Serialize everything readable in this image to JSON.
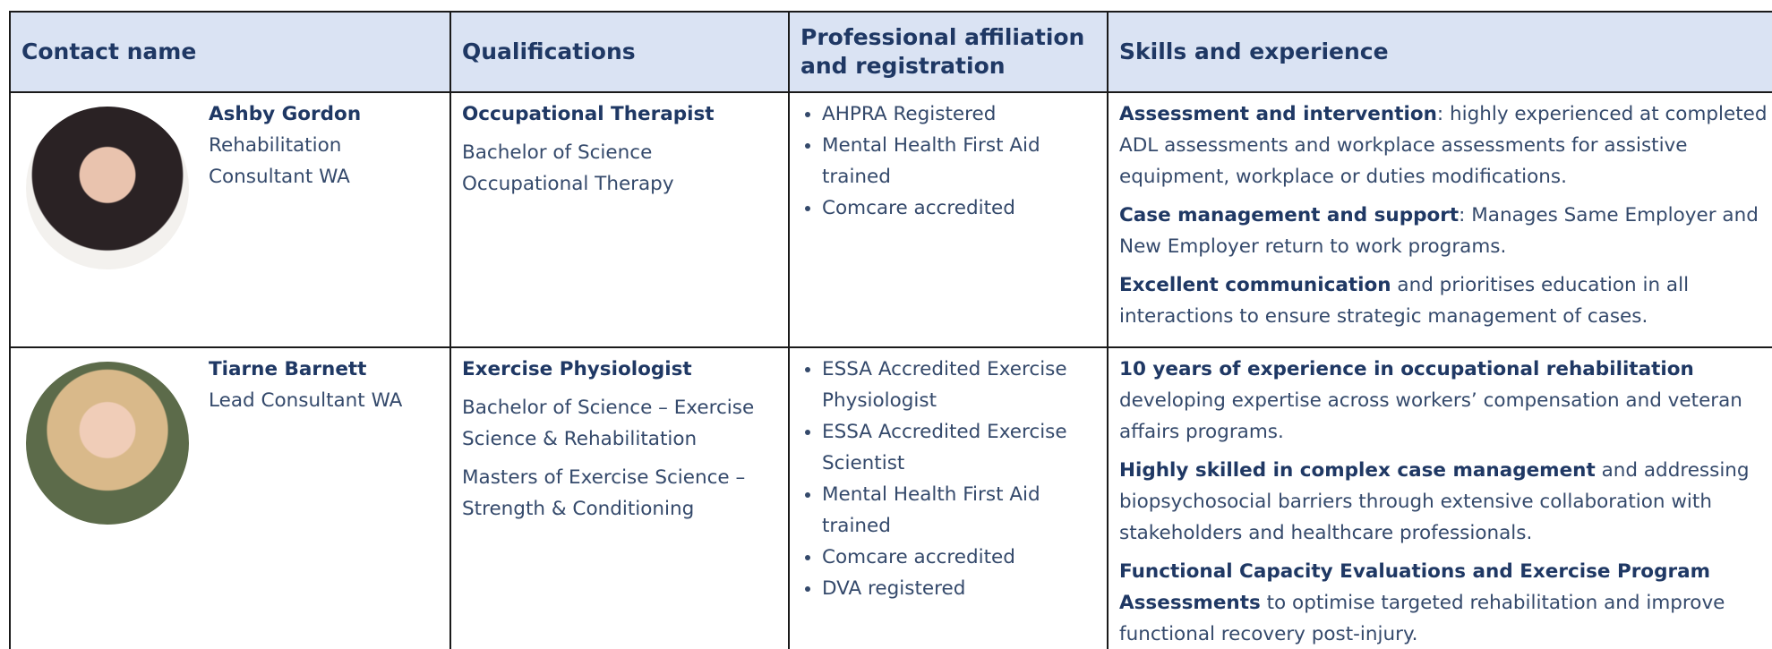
{
  "header": {
    "columns": [
      "Contact name",
      "Qualifications",
      "Professional affiliation and registration",
      "Skills and experience"
    ]
  },
  "rows": [
    {
      "name": "Ashby Gordon",
      "role": "Rehabilitation Consultant WA",
      "qualification": {
        "title": "Occupational Therapist",
        "details": [
          "Bachelor of Science Occupational Therapy"
        ]
      },
      "affiliations": [
        "AHPRA Registered",
        "Mental Health First Aid trained",
        "Comcare accredited"
      ],
      "skills": [
        {
          "bold": "Assessment and intervention",
          "rest": ": highly experienced at completed ADL assessments and workplace assessments for assistive equipment, workplace or duties modifications."
        },
        {
          "bold": "Case management and support",
          "rest": ": Manages Same Employer and New Employer return to work programs."
        },
        {
          "bold": "Excellent communication",
          "rest": " and prioritises education in all interactions to ensure strategic management of cases."
        }
      ]
    },
    {
      "name": "Tiarne Barnett",
      "role": "Lead Consultant WA",
      "qualification": {
        "title": "Exercise Physiologist",
        "details": [
          "Bachelor of Science – Exercise Science & Rehabilitation",
          "Masters of Exercise Science – Strength & Conditioning"
        ]
      },
      "affiliations": [
        "ESSA Accredited Exercise Physiologist",
        "ESSA Accredited Exercise Scientist",
        "Mental Health First Aid trained",
        "Comcare accredited",
        "DVA registered"
      ],
      "skills": [
        {
          "bold": "10 years of experience in occupational rehabilitation",
          "rest": " developing expertise across workers’ compensation and veteran affairs programs."
        },
        {
          "bold": "Highly skilled in complex case management",
          "rest": " and addressing biopsychosocial barriers through extensive collaboration with stakeholders and healthcare professionals."
        },
        {
          "bold": "Functional Capacity Evaluations and Exercise Program Assessments",
          "rest": " to optimise targeted rehabilitation and improve functional recovery post-injury."
        }
      ]
    }
  ]
}
